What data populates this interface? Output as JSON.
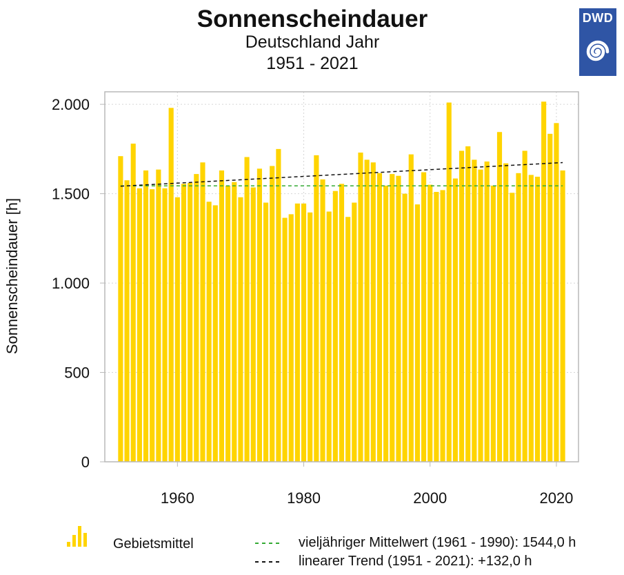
{
  "header": {
    "title": "Sonnenscheindauer",
    "subtitle": "Deutschland Jahr",
    "period": "1951 - 2021",
    "logo_text": "DWD"
  },
  "legend": {
    "series_label": "Gebietsmittel",
    "mean_label": "vieljähriger Mittelwert (1961 - 1990): 1544,0 h",
    "trend_label": "linearer Trend (1951 - 2021): +132,0 h"
  },
  "colors": {
    "bar": "#ffd400",
    "mean_line": "#33aa33",
    "trend_line": "#111111",
    "logo_bg": "#2f55a5",
    "grid": "#d5d5d5",
    "axis": "#b8b8b8"
  },
  "icons": {
    "logo": "dwd-logo-icon",
    "legend_series": "bar-legend-icon"
  },
  "chart_data": {
    "type": "bar",
    "title": "Sonnenscheindauer",
    "subtitle": "Deutschland Jahr",
    "period": "1951 - 2021",
    "xlabel": "",
    "ylabel": "Sonnenscheindauer [h]",
    "xlim": [
      1948.5,
      2023.5
    ],
    "ylim": [
      0,
      2070
    ],
    "grid": true,
    "legend_position": "bottom",
    "x_ticks": [
      1960,
      1980,
      2000,
      2020
    ],
    "y_ticks": [
      0,
      500,
      1000,
      1500,
      2000
    ],
    "y_tick_labels": [
      "0",
      "500",
      "1.000",
      "1.500",
      "2.000"
    ],
    "categories": [
      1951,
      1952,
      1953,
      1954,
      1955,
      1956,
      1957,
      1958,
      1959,
      1960,
      1961,
      1962,
      1963,
      1964,
      1965,
      1966,
      1967,
      1968,
      1969,
      1970,
      1971,
      1972,
      1973,
      1974,
      1975,
      1976,
      1977,
      1978,
      1979,
      1980,
      1981,
      1982,
      1983,
      1984,
      1985,
      1986,
      1987,
      1988,
      1989,
      1990,
      1991,
      1992,
      1993,
      1994,
      1995,
      1996,
      1997,
      1998,
      1999,
      2000,
      2001,
      2002,
      2003,
      2004,
      2005,
      2006,
      2007,
      2008,
      2009,
      2010,
      2011,
      2012,
      2013,
      2014,
      2015,
      2016,
      2017,
      2018,
      2019,
      2020,
      2021
    ],
    "series": [
      {
        "name": "Gebietsmittel",
        "values": [
          1710,
          1575,
          1780,
          1530,
          1630,
          1525,
          1635,
          1530,
          1980,
          1480,
          1555,
          1560,
          1610,
          1675,
          1455,
          1435,
          1630,
          1545,
          1565,
          1480,
          1705,
          1535,
          1640,
          1450,
          1655,
          1750,
          1365,
          1385,
          1445,
          1445,
          1395,
          1715,
          1580,
          1400,
          1515,
          1555,
          1370,
          1450,
          1730,
          1690,
          1675,
          1615,
          1545,
          1610,
          1600,
          1500,
          1720,
          1440,
          1620,
          1550,
          1510,
          1520,
          2010,
          1585,
          1740,
          1765,
          1690,
          1635,
          1680,
          1545,
          1845,
          1670,
          1505,
          1615,
          1740,
          1605,
          1595,
          2015,
          1835,
          1895,
          1630
        ]
      }
    ],
    "reference_lines": [
      {
        "name": "vieljähriger Mittelwert (1961 - 1990): 1544,0 h",
        "type": "constant",
        "y": 1544.0,
        "x_start": 1951,
        "x_end": 2021
      },
      {
        "name": "linearer Trend (1951 - 2021): +132,0 h",
        "type": "trend",
        "start": [
          1951,
          1542.0
        ],
        "end": [
          2021,
          1674.0
        ]
      }
    ]
  }
}
